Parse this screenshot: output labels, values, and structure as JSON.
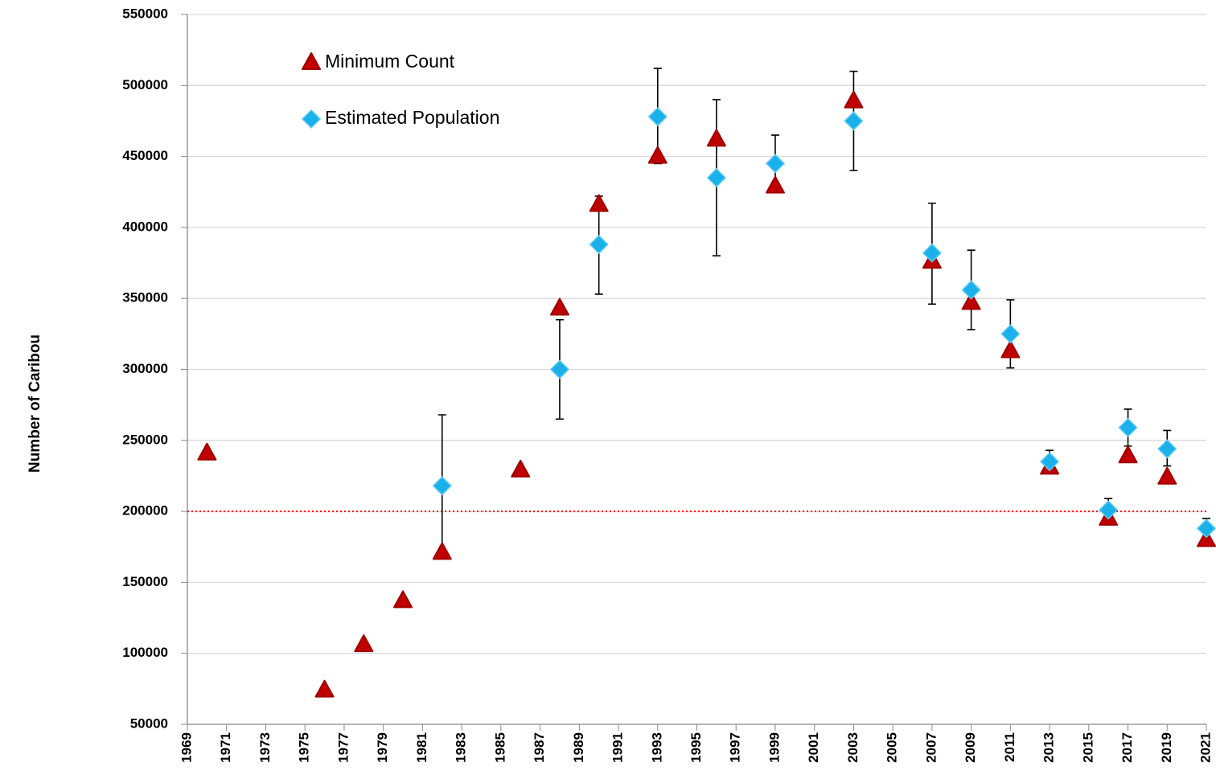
{
  "chart_data": {
    "type": "scatter",
    "y_label": "Number of Caribou",
    "xlim": [
      1969,
      2021
    ],
    "xticks": [
      1969,
      1971,
      1973,
      1975,
      1977,
      1979,
      1981,
      1983,
      1985,
      1987,
      1989,
      1991,
      1993,
      1995,
      1997,
      1999,
      2001,
      2003,
      2005,
      2007,
      2009,
      2011,
      2013,
      2015,
      2017,
      2019,
      2021
    ],
    "ylim": [
      50000,
      550000
    ],
    "yticks": [
      50000,
      100000,
      150000,
      200000,
      250000,
      300000,
      350000,
      400000,
      450000,
      500000,
      550000
    ],
    "grid": true,
    "legend": "upper-left",
    "reference_line": {
      "value": 200000,
      "color": "#ff0000"
    },
    "series": [
      {
        "name": "Minimum Count",
        "marker": "triangle",
        "color": "#c00000",
        "x": [
          1970,
          1976,
          1978,
          1980,
          1982,
          1986,
          1988,
          1990,
          1993,
          1996,
          1999,
          2003,
          2007,
          2009,
          2011,
          2013,
          2016,
          2017,
          2019,
          2021
        ],
        "values": [
          241000,
          74000,
          106000,
          137000,
          171000,
          229000,
          343000,
          416000,
          450000,
          462000,
          429000,
          489000,
          376000,
          347000,
          313000,
          231000,
          195000,
          239000,
          224000,
          180000
        ]
      },
      {
        "name": "Estimated Population",
        "marker": "diamond",
        "color": "#1ab0ea",
        "x": [
          1982,
          1988,
          1990,
          1993,
          1996,
          1999,
          2003,
          2007,
          2009,
          2011,
          2013,
          2016,
          2017,
          2019,
          2021
        ],
        "values": [
          218000,
          300000,
          388000,
          478000,
          435000,
          445000,
          475000,
          382000,
          356000,
          325000,
          235000,
          201000,
          259000,
          244000,
          188000
        ],
        "lower": [
          172000,
          265000,
          353000,
          445000,
          380000,
          425000,
          440000,
          346000,
          328000,
          301000,
          227000,
          194000,
          246000,
          232000,
          181000
        ],
        "upper": [
          268000,
          335000,
          422000,
          512000,
          490000,
          465000,
          510000,
          417000,
          384000,
          349000,
          243000,
          209000,
          272000,
          257000,
          195000
        ]
      }
    ]
  }
}
